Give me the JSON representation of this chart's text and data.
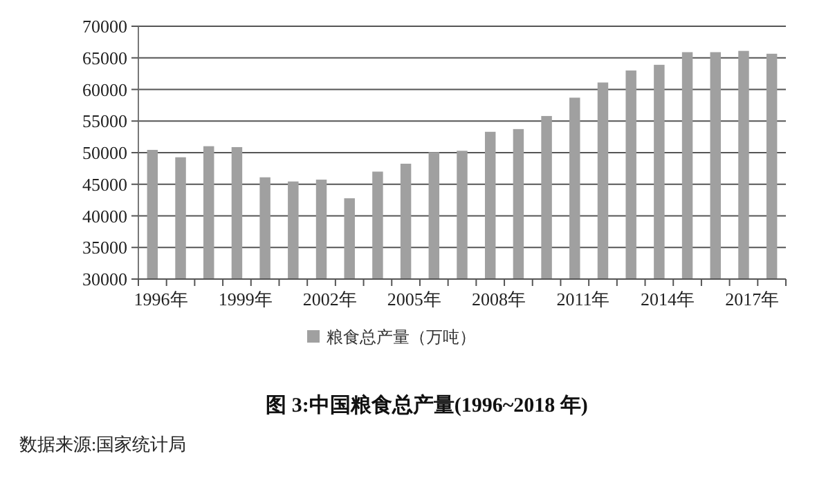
{
  "chart_data": {
    "type": "bar",
    "title": "图 3:中国粮食总产量(1996~2018 年)",
    "categories": [
      "1996年",
      null,
      null,
      "1999年",
      null,
      null,
      "2002年",
      null,
      null,
      "2005年",
      null,
      null,
      "2008年",
      null,
      null,
      "2011年",
      null,
      null,
      "2014年",
      null,
      null,
      "2017年",
      null
    ],
    "series": [
      {
        "name": "粮食总产量（万吨）",
        "color": "#a0a0a0",
        "values": [
          50440,
          49270,
          51020,
          50880,
          46100,
          45440,
          45730,
          42780,
          47000,
          48250,
          50070,
          50300,
          53300,
          53730,
          55800,
          58700,
          61100,
          63000,
          63900,
          65900,
          65900,
          66100,
          65650
        ]
      }
    ],
    "ylim": [
      30000,
      70000
    ],
    "yticks": [
      30000,
      35000,
      40000,
      45000,
      50000,
      55000,
      60000,
      65000,
      70000
    ],
    "grid": "y",
    "legend": "bottom",
    "annotations": [
      "数据来源:国家统计局"
    ]
  }
}
